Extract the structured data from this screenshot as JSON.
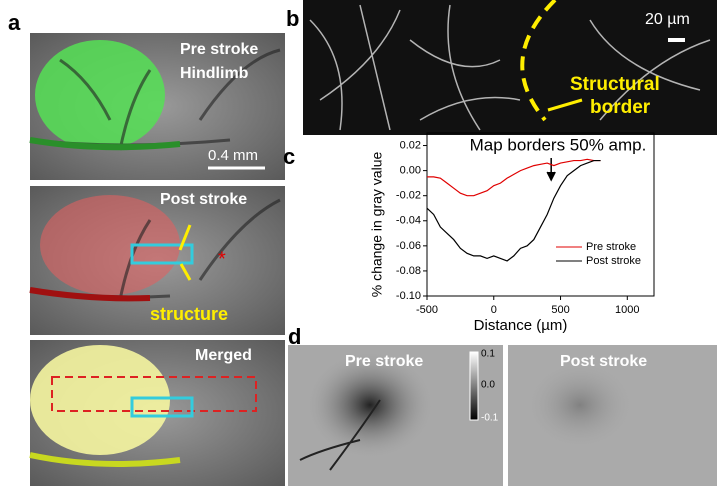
{
  "figure": {
    "panel_labels": [
      "a",
      "b",
      "c",
      "d"
    ],
    "panel_a": {
      "pre_title": "Pre stroke",
      "pre_subtitle": "Hindlimb",
      "scale": "0.4 mm",
      "post_title": "Post stroke",
      "asterisk": "*",
      "structure": "structure",
      "merged": "Merged"
    },
    "panel_b": {
      "scale": "20 µm",
      "border_1": "Structural",
      "border_2": "border"
    },
    "panel_d": {
      "pre_title": "Pre stroke",
      "post_title": "Post stroke",
      "colorbar": [
        "0.1",
        "0.0",
        "-0.1"
      ]
    }
  },
  "chart_data": {
    "type": "line",
    "title": "Map borders 50% amp.",
    "x_label": "Distance (µm)",
    "y_label": "% change in gray value",
    "x": [
      -500,
      -450,
      -400,
      -350,
      -300,
      -250,
      -200,
      -150,
      -100,
      -50,
      0,
      50,
      100,
      150,
      200,
      250,
      300,
      350,
      400,
      450,
      500,
      550,
      600,
      650,
      700,
      750,
      800
    ],
    "series": [
      {
        "name": "Pre stroke",
        "color": "#e00000",
        "values": [
          -0.005,
          -0.005,
          -0.006,
          -0.01,
          -0.014,
          -0.018,
          -0.02,
          -0.02,
          -0.018,
          -0.016,
          -0.012,
          -0.01,
          -0.006,
          -0.003,
          0.0,
          0.002,
          0.004,
          0.005,
          0.006,
          0.004,
          0.006,
          0.007,
          0.008,
          0.008,
          0.009,
          0.008,
          0.008
        ]
      },
      {
        "name": "Post stroke",
        "color": "#000000",
        "values": [
          -0.03,
          -0.035,
          -0.045,
          -0.05,
          -0.055,
          -0.062,
          -0.066,
          -0.068,
          -0.068,
          -0.07,
          -0.068,
          -0.07,
          -0.072,
          -0.068,
          -0.062,
          -0.06,
          -0.055,
          -0.045,
          -0.035,
          -0.022,
          -0.012,
          -0.004,
          0.0,
          0.004,
          0.006,
          0.008,
          0.008
        ]
      }
    ],
    "xlim": [
      -500,
      1200
    ],
    "xticks": [
      -500,
      0,
      500,
      1000
    ],
    "ylim": [
      -0.1,
      0.03
    ],
    "yticks": [
      {
        "value": -0.1,
        "label": "-0.10"
      },
      -0.08,
      -0.06,
      -0.04,
      -0.02,
      {
        "value": 0,
        "label": "0.00"
      },
      0.02
    ],
    "annotation_x": 430
  }
}
